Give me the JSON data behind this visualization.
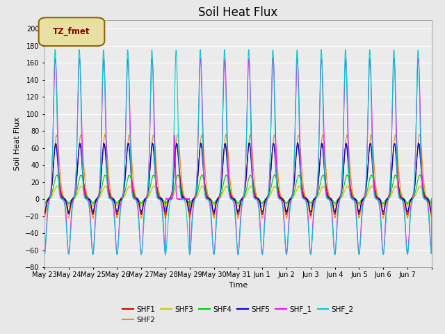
{
  "title": "Soil Heat Flux",
  "xlabel": "Time",
  "ylabel": "Soil Heat Flux",
  "ylim": [
    -80,
    210
  ],
  "yticks": [
    -80,
    -60,
    -40,
    -20,
    0,
    20,
    40,
    60,
    80,
    100,
    120,
    140,
    160,
    180,
    200
  ],
  "series_colors": {
    "SHF1": "#cc0000",
    "SHF2": "#ff8800",
    "SHF3": "#cccc00",
    "SHF4": "#00cc00",
    "SHF5": "#0000cc",
    "SHF_1": "#ff00ff",
    "SHF_2": "#00cccc"
  },
  "legend_label": "TZ_fmet",
  "legend_bg": "#e8e0a0",
  "legend_border": "#886600",
  "days": [
    "May 23",
    "May 24",
    "May 25",
    "May 26",
    "May 27",
    "May 28",
    "May 29",
    "May 30",
    "May 31",
    "Jun 1",
    "Jun 2",
    "Jun 3",
    "Jun 4",
    "Jun 5",
    "Jun 6",
    "Jun 7"
  ],
  "n_points_per_day": 144,
  "background_color": "#e8e8e8",
  "plot_bg": "#ebebeb",
  "grid_color": "#ffffff",
  "title_fontsize": 12,
  "tick_fontsize": 7,
  "label_fontsize": 8
}
